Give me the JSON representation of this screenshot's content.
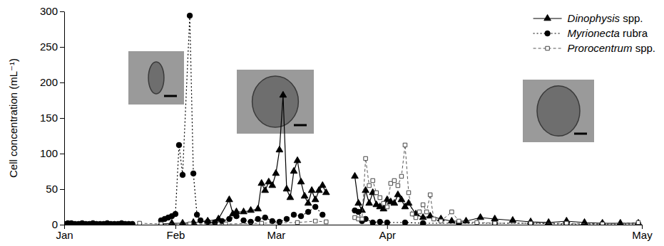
{
  "chart_data": {
    "type": "line",
    "y_label": "Cell concentration (mL⁻¹)",
    "xlim": [
      0,
      161
    ],
    "xticks": [
      {
        "value": 0,
        "label": "Jan"
      },
      {
        "value": 31,
        "label": "Feb"
      },
      {
        "value": 59,
        "label": "Mar"
      },
      {
        "value": 90,
        "label": "Apr"
      },
      {
        "value": 161,
        "label": "May"
      }
    ],
    "ylim": [
      0,
      300
    ],
    "yticks": [
      0,
      50,
      100,
      150,
      200,
      250,
      300
    ],
    "grid": false,
    "legend": "upper right",
    "series": [
      {
        "name": "Dinophysis spp.",
        "color": "#000000",
        "marker": "triangle",
        "line_style": "solid",
        "x": [
          27,
          30,
          33,
          36,
          40,
          43,
          46,
          47,
          48,
          50,
          52,
          54,
          55,
          56,
          57,
          58,
          59,
          60,
          61,
          62,
          63,
          64,
          65,
          66,
          67,
          68,
          69,
          70,
          71,
          72,
          73,
          77,
          81,
          82,
          83,
          84,
          85,
          86,
          87,
          88,
          89,
          90,
          91,
          92,
          93,
          94,
          95,
          96,
          98,
          100,
          102,
          105,
          108,
          112,
          116,
          120,
          125,
          130,
          135,
          140,
          145,
          150,
          155,
          160
        ],
        "values": [
          1,
          2,
          2,
          3,
          5,
          8,
          35,
          15,
          18,
          18,
          20,
          22,
          58,
          48,
          60,
          55,
          72,
          105,
          182,
          50,
          38,
          75,
          90,
          60,
          40,
          30,
          48,
          35,
          48,
          55,
          45,
          null,
          68,
          30,
          20,
          48,
          30,
          45,
          28,
          25,
          22,
          35,
          32,
          30,
          42,
          35,
          25,
          30,
          15,
          10,
          12,
          8,
          5,
          5,
          10,
          8,
          6,
          4,
          3,
          5,
          3,
          2,
          2,
          2
        ]
      },
      {
        "name": "Myrionecta rubra",
        "color": "#000000",
        "marker": "circle",
        "line_style": "dotted",
        "x": [
          0,
          1,
          2,
          3,
          4,
          5,
          6,
          7,
          8,
          9,
          10,
          11,
          12,
          13,
          14,
          15,
          16,
          17,
          18,
          19,
          23,
          27,
          28,
          29,
          30,
          31,
          32,
          33,
          35,
          36,
          37,
          38,
          40,
          42,
          44,
          46,
          48,
          50,
          52,
          54,
          56,
          58,
          60,
          62,
          64,
          66,
          68,
          70,
          72,
          77,
          81,
          82,
          83,
          84,
          86,
          88,
          90,
          95,
          100,
          110,
          120,
          130,
          140,
          150,
          160
        ],
        "values": [
          1,
          2,
          2,
          1,
          1,
          2,
          1,
          1,
          2,
          1,
          1,
          1,
          2,
          1,
          1,
          1,
          2,
          1,
          1,
          1,
          null,
          6,
          8,
          10,
          12,
          15,
          112,
          70,
          294,
          72,
          14,
          6,
          4,
          3,
          5,
          8,
          12,
          6,
          4,
          8,
          10,
          5,
          4,
          8,
          14,
          12,
          18,
          25,
          14,
          null,
          20,
          18,
          5,
          8,
          3,
          4,
          3,
          3,
          2,
          2,
          2,
          2,
          1,
          1,
          1
        ]
      },
      {
        "name": "Prorocentrum spp.",
        "color": "#444444",
        "marker": "square_open",
        "line_style": "dashed",
        "x": [
          21,
          27,
          35,
          45,
          55,
          65,
          70,
          73,
          77,
          81,
          82,
          83,
          84,
          85,
          86,
          87,
          88,
          89,
          90,
          91,
          92,
          93,
          94,
          95,
          96,
          97,
          98,
          99,
          100,
          101,
          102,
          103,
          105,
          108,
          110,
          115,
          120,
          130,
          140,
          150,
          160
        ],
        "values": [
          2,
          1,
          1,
          1,
          2,
          3,
          5,
          4,
          null,
          10,
          8,
          8,
          93,
          55,
          62,
          45,
          38,
          30,
          25,
          58,
          62,
          55,
          68,
          112,
          45,
          15,
          10,
          18,
          28,
          18,
          42,
          8,
          5,
          18,
          5,
          3,
          2,
          2,
          2,
          1,
          3
        ]
      }
    ]
  }
}
